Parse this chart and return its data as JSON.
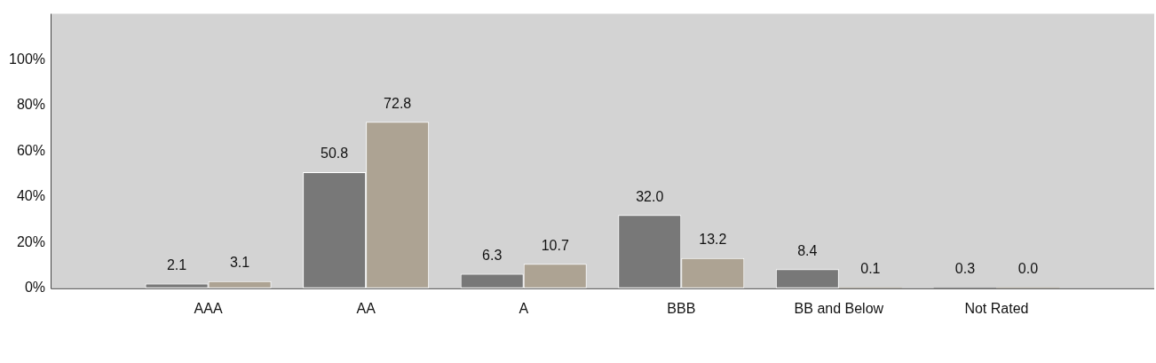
{
  "chart_data": {
    "type": "bar",
    "categories": [
      "AAA",
      "AA",
      "A",
      "BBB",
      "BB and Below",
      "Not Rated"
    ],
    "series": [
      {
        "color": "#787878",
        "values": [
          2.1,
          50.8,
          6.3,
          32.0,
          8.4,
          0.3
        ],
        "value_labels": [
          "2.1",
          "50.8",
          "6.3",
          "32.0",
          "8.4",
          "0.3"
        ]
      },
      {
        "color": "#ada393",
        "values": [
          3.1,
          72.8,
          10.7,
          13.2,
          0.1,
          0.0
        ],
        "value_labels": [
          "3.1",
          "72.8",
          "10.7",
          "13.2",
          "0.1",
          "0.0"
        ]
      }
    ],
    "ylim": [
      0,
      120
    ],
    "yticks": [
      {
        "value": 0,
        "label": "0%"
      },
      {
        "value": 20,
        "label": "20%"
      },
      {
        "value": 40,
        "label": "40%"
      },
      {
        "value": 60,
        "label": "60%"
      },
      {
        "value": 80,
        "label": "80%"
      },
      {
        "value": 100,
        "label": "100%"
      }
    ],
    "grid": false
  }
}
